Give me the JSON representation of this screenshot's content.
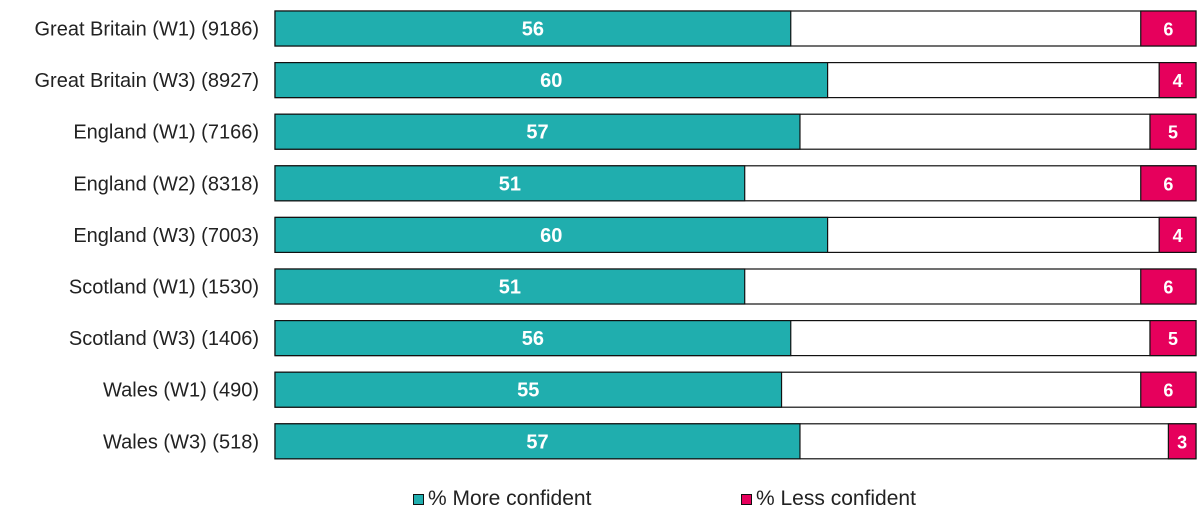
{
  "chart_data": {
    "type": "bar",
    "stacked": true,
    "orientation": "horizontal",
    "categories": [
      "Great Britain (W1) (9186)",
      "Great Britain (W3) (8927)",
      "England (W1) (7166)",
      "England (W2) (8318)",
      "England (W3) (7003)",
      "Scotland (W1) (1530)",
      "Scotland (W3) (1406)",
      "Wales (W1) (490)",
      "Wales (W3) (518)"
    ],
    "series": [
      {
        "name": "% More confident",
        "values": [
          56,
          60,
          57,
          51,
          60,
          51,
          56,
          55,
          57
        ],
        "color": "#20aeae"
      },
      {
        "name": "% Less confident",
        "values": [
          6,
          4,
          5,
          6,
          4,
          6,
          5,
          6,
          3
        ],
        "color": "#e6005c"
      }
    ],
    "xlim": [
      0,
      100
    ],
    "remainder_color": "#ffffff",
    "bar_border_color": "#111111",
    "data_label_color": "#ffffff",
    "legend": {
      "position": "bottom",
      "items": [
        "% More confident",
        "% Less confident"
      ]
    },
    "grid": false
  }
}
